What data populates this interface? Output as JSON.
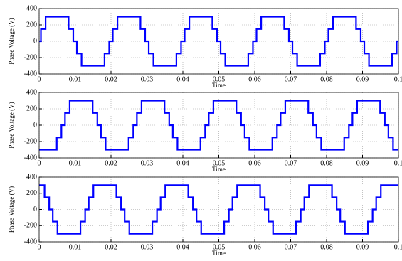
{
  "chart_data": [
    {
      "type": "line",
      "steps": "post",
      "xlabel": "Time",
      "ylabel": "Phase Voltage (V)",
      "color": "#0000ff",
      "grid": true,
      "xlim": [
        0,
        0.1
      ],
      "ylim": [
        -400,
        400
      ],
      "xticks": [
        0,
        0.01,
        0.02,
        0.03,
        0.04,
        0.05,
        0.06,
        0.07,
        0.08,
        0.09,
        0.1
      ],
      "yticks": [
        -400,
        -200,
        0,
        200,
        400
      ],
      "x": [
        0,
        0.0005,
        0.0018,
        0.0082,
        0.0095,
        0.0105,
        0.0118,
        0.0182,
        0.0195,
        0.0205,
        0.0218,
        0.0282,
        0.0295,
        0.0305,
        0.0318,
        0.0382,
        0.0395,
        0.0405,
        0.0418,
        0.0482,
        0.0495,
        0.0505,
        0.0518,
        0.0582,
        0.0595,
        0.0605,
        0.0618,
        0.0682,
        0.0695,
        0.0705,
        0.0718,
        0.0782,
        0.0795,
        0.0805,
        0.0818,
        0.0882,
        0.0895,
        0.0905,
        0.0918,
        0.0982,
        0.0995,
        0.1
      ],
      "values": [
        0,
        150,
        300,
        150,
        0,
        -150,
        -300,
        -150,
        0,
        150,
        300,
        150,
        0,
        -150,
        -300,
        -150,
        0,
        150,
        300,
        150,
        0,
        -150,
        -300,
        -150,
        0,
        150,
        300,
        150,
        0,
        -150,
        -300,
        -150,
        0,
        150,
        300,
        150,
        0,
        -150,
        -300,
        -150,
        0,
        0
      ]
    },
    {
      "type": "line",
      "steps": "post",
      "xlabel": "Time",
      "ylabel": "Phase Voltage (V)",
      "color": "#0000ff",
      "grid": true,
      "xlim": [
        0,
        0.1
      ],
      "ylim": [
        -400,
        400
      ],
      "xticks": [
        0,
        0.01,
        0.02,
        0.03,
        0.04,
        0.05,
        0.06,
        0.07,
        0.08,
        0.09,
        0.1
      ],
      "yticks": [
        -400,
        -200,
        0,
        200,
        400
      ],
      "x": [
        0,
        0.0049,
        0.0062,
        0.0072,
        0.0085,
        0.0149,
        0.0162,
        0.0172,
        0.0185,
        0.0249,
        0.0262,
        0.0272,
        0.0285,
        0.0349,
        0.0362,
        0.0372,
        0.0385,
        0.0449,
        0.0462,
        0.0472,
        0.0485,
        0.0549,
        0.0562,
        0.0572,
        0.0585,
        0.0649,
        0.0662,
        0.0672,
        0.0685,
        0.0749,
        0.0762,
        0.0772,
        0.0785,
        0.0849,
        0.0862,
        0.0872,
        0.0885,
        0.0949,
        0.0962,
        0.0972,
        0.0985,
        0.1
      ],
      "values": [
        -300,
        -150,
        0,
        150,
        300,
        150,
        0,
        -150,
        -300,
        -150,
        0,
        150,
        300,
        150,
        0,
        -150,
        -300,
        -150,
        0,
        150,
        300,
        150,
        0,
        -150,
        -300,
        -150,
        0,
        150,
        300,
        150,
        0,
        -150,
        -300,
        -150,
        0,
        150,
        300,
        150,
        0,
        -150,
        -300,
        -300
      ]
    },
    {
      "type": "line",
      "steps": "post",
      "xlabel": "Time",
      "ylabel": "Phase Voltage (V)",
      "color": "#0000ff",
      "grid": true,
      "xlim": [
        0,
        0.1
      ],
      "ylim": [
        -400,
        400
      ],
      "xticks": [
        0,
        0.01,
        0.02,
        0.03,
        0.04,
        0.05,
        0.06,
        0.07,
        0.08,
        0.09,
        0.1
      ],
      "yticks": [
        -400,
        -200,
        0,
        200,
        400
      ],
      "x": [
        0,
        0.0015,
        0.0028,
        0.0038,
        0.0051,
        0.0115,
        0.0128,
        0.0138,
        0.0151,
        0.0215,
        0.0228,
        0.0238,
        0.0251,
        0.0315,
        0.0328,
        0.0338,
        0.0351,
        0.0415,
        0.0428,
        0.0438,
        0.0451,
        0.0515,
        0.0528,
        0.0538,
        0.0551,
        0.0615,
        0.0628,
        0.0638,
        0.0651,
        0.0715,
        0.0728,
        0.0738,
        0.0751,
        0.0815,
        0.0828,
        0.0838,
        0.0851,
        0.0915,
        0.0928,
        0.0938,
        0.0951,
        0.1
      ],
      "values": [
        300,
        150,
        0,
        -150,
        -300,
        -150,
        0,
        150,
        300,
        150,
        0,
        -150,
        -300,
        -150,
        0,
        150,
        300,
        150,
        0,
        -150,
        -300,
        -150,
        0,
        150,
        300,
        150,
        0,
        -150,
        -300,
        -150,
        0,
        150,
        300,
        150,
        0,
        -150,
        -300,
        -150,
        0,
        150,
        300,
        300
      ]
    }
  ]
}
